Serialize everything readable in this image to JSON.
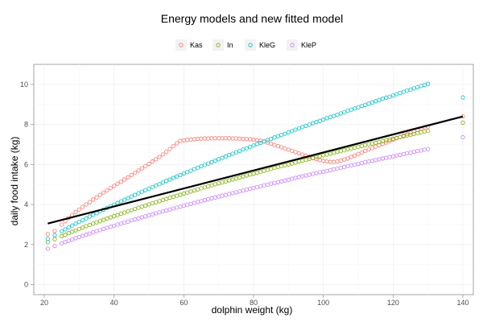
{
  "chart_data": {
    "type": "scatter",
    "title": "Energy models and new fitted model",
    "xlabel": "dolphin weight (kg)",
    "ylabel": "daily food intake (kg)",
    "xlim": [
      17,
      143
    ],
    "ylim": [
      -0.5,
      11
    ],
    "xticks": [
      "20",
      "40",
      "60",
      "80",
      "100",
      "120",
      "140"
    ],
    "yticks": [
      "0",
      "2",
      "4",
      "6",
      "8",
      "10"
    ],
    "grid": true,
    "legend_position": "top",
    "x": [
      21,
      23,
      25,
      26,
      27,
      28,
      29,
      30,
      31,
      32,
      33,
      34,
      35,
      36,
      37,
      38,
      39,
      40,
      41,
      42,
      43,
      44,
      45,
      46,
      47,
      48,
      49,
      50,
      51,
      52,
      53,
      54,
      55,
      56,
      57,
      58,
      59,
      60,
      61,
      62,
      63,
      64,
      65,
      66,
      67,
      68,
      69,
      70,
      71,
      72,
      73,
      74,
      75,
      76,
      77,
      78,
      79,
      80,
      81,
      82,
      83,
      84,
      85,
      86,
      87,
      88,
      89,
      90,
      91,
      92,
      93,
      94,
      95,
      96,
      97,
      98,
      99,
      100,
      101,
      102,
      103,
      104,
      105,
      106,
      107,
      108,
      109,
      110,
      111,
      112,
      113,
      114,
      115,
      116,
      117,
      118,
      119,
      120,
      121,
      122,
      123,
      124,
      125,
      126,
      127,
      128,
      129,
      130,
      140
    ],
    "series": [
      {
        "name": "Kas",
        "color": "#F8766D",
        "values": [
          2.52,
          2.68,
          3.0,
          3.17,
          3.33,
          3.47,
          3.62,
          3.75,
          3.88,
          4.0,
          4.12,
          4.25,
          4.36,
          4.48,
          4.6,
          4.71,
          4.82,
          4.93,
          5.04,
          5.14,
          5.25,
          5.36,
          5.48,
          5.59,
          5.7,
          5.81,
          5.92,
          6.03,
          6.15,
          6.26,
          6.38,
          6.5,
          6.64,
          6.78,
          6.92,
          7.06,
          7.18,
          7.21,
          7.23,
          7.25,
          7.26,
          7.28,
          7.29,
          7.3,
          7.3,
          7.31,
          7.31,
          7.31,
          7.31,
          7.31,
          7.31,
          7.3,
          7.3,
          7.29,
          7.28,
          7.27,
          7.26,
          7.24,
          7.22,
          7.19,
          7.15,
          7.1,
          7.04,
          6.98,
          6.92,
          6.86,
          6.8,
          6.74,
          6.68,
          6.62,
          6.56,
          6.5,
          6.44,
          6.38,
          6.33,
          6.27,
          6.22,
          6.18,
          6.15,
          6.13,
          6.13,
          6.15,
          6.2,
          6.25,
          6.3,
          6.38,
          6.45,
          6.53,
          6.6,
          6.68,
          6.75,
          6.82,
          6.89,
          6.96,
          7.03,
          7.1,
          7.17,
          7.24,
          7.31,
          7.38,
          7.45,
          7.52,
          7.59,
          7.66,
          7.73,
          7.8,
          7.87,
          7.9,
          8.4
        ]
      },
      {
        "name": "In",
        "color": "#7CAE00",
        "values": [
          2.12,
          2.27,
          2.42,
          2.49,
          2.57,
          2.64,
          2.71,
          2.78,
          2.85,
          2.92,
          2.98,
          3.05,
          3.11,
          3.17,
          3.24,
          3.3,
          3.36,
          3.42,
          3.48,
          3.54,
          3.6,
          3.66,
          3.72,
          3.78,
          3.84,
          3.89,
          3.95,
          4.01,
          4.06,
          4.12,
          4.17,
          4.23,
          4.28,
          4.34,
          4.39,
          4.44,
          4.49,
          4.55,
          4.6,
          4.65,
          4.7,
          4.75,
          4.81,
          4.86,
          4.91,
          4.96,
          5.01,
          5.06,
          5.11,
          5.16,
          5.21,
          5.25,
          5.3,
          5.35,
          5.4,
          5.45,
          5.5,
          5.54,
          5.59,
          5.64,
          5.69,
          5.73,
          5.78,
          5.83,
          5.87,
          5.92,
          5.96,
          6.01,
          6.05,
          6.1,
          6.15,
          6.19,
          6.23,
          6.28,
          6.32,
          6.37,
          6.41,
          6.46,
          6.5,
          6.54,
          6.59,
          6.63,
          6.67,
          6.71,
          6.76,
          6.8,
          6.84,
          6.88,
          6.92,
          6.97,
          7.01,
          7.05,
          7.09,
          7.13,
          7.17,
          7.21,
          7.25,
          7.29,
          7.33,
          7.37,
          7.41,
          7.45,
          7.49,
          7.53,
          7.57,
          7.61,
          7.65,
          7.69,
          8.09
        ]
      },
      {
        "name": "KleG",
        "color": "#00BFC4",
        "values": [
          2.28,
          2.47,
          2.67,
          2.76,
          2.86,
          2.95,
          3.04,
          3.13,
          3.22,
          3.31,
          3.4,
          3.49,
          3.57,
          3.66,
          3.74,
          3.83,
          3.91,
          3.99,
          4.08,
          4.16,
          4.24,
          4.32,
          4.4,
          4.48,
          4.56,
          4.64,
          4.72,
          4.79,
          4.87,
          4.95,
          5.02,
          5.1,
          5.18,
          5.25,
          5.33,
          5.4,
          5.47,
          5.55,
          5.62,
          5.69,
          5.77,
          5.84,
          5.91,
          5.98,
          6.05,
          6.12,
          6.19,
          6.26,
          6.33,
          6.4,
          6.47,
          6.54,
          6.61,
          6.68,
          6.75,
          6.81,
          6.88,
          6.95,
          7.02,
          7.08,
          7.15,
          7.22,
          7.28,
          7.35,
          7.41,
          7.48,
          7.54,
          7.61,
          7.67,
          7.74,
          7.8,
          7.87,
          7.93,
          7.99,
          8.06,
          8.12,
          8.18,
          8.24,
          8.31,
          8.37,
          8.43,
          8.49,
          8.55,
          8.61,
          8.68,
          8.74,
          8.8,
          8.86,
          8.92,
          8.98,
          9.04,
          9.1,
          9.16,
          9.22,
          9.28,
          9.34,
          9.39,
          9.45,
          9.51,
          9.57,
          9.63,
          9.69,
          9.74,
          9.8,
          9.86,
          9.92,
          9.97,
          10.03,
          9.35
        ]
      },
      {
        "name": "KleP",
        "color": "#C77CFF",
        "values": [
          1.8,
          1.93,
          2.06,
          2.13,
          2.19,
          2.25,
          2.32,
          2.38,
          2.44,
          2.5,
          2.55,
          2.61,
          2.67,
          2.72,
          2.78,
          2.84,
          2.89,
          2.94,
          3.0,
          3.05,
          3.1,
          3.15,
          3.21,
          3.26,
          3.31,
          3.36,
          3.41,
          3.46,
          3.51,
          3.56,
          3.61,
          3.66,
          3.7,
          3.75,
          3.8,
          3.85,
          3.89,
          3.94,
          3.99,
          4.03,
          4.08,
          4.13,
          4.17,
          4.22,
          4.26,
          4.31,
          4.35,
          4.4,
          4.44,
          4.48,
          4.53,
          4.57,
          4.61,
          4.66,
          4.7,
          4.74,
          4.79,
          4.83,
          4.87,
          4.91,
          4.96,
          5.0,
          5.04,
          5.08,
          5.12,
          5.16,
          5.2,
          5.24,
          5.29,
          5.33,
          5.37,
          5.41,
          5.45,
          5.49,
          5.53,
          5.57,
          5.61,
          5.64,
          5.68,
          5.72,
          5.76,
          5.8,
          5.84,
          5.88,
          5.92,
          5.96,
          5.99,
          6.03,
          6.07,
          6.11,
          6.15,
          6.18,
          6.22,
          6.26,
          6.3,
          6.33,
          6.37,
          6.41,
          6.45,
          6.48,
          6.52,
          6.56,
          6.59,
          6.63,
          6.67,
          6.7,
          6.74,
          6.77,
          7.36
        ]
      }
    ],
    "fitted_line": {
      "color": "#000000",
      "x": [
        21,
        140
      ],
      "y": [
        3.05,
        8.4
      ]
    }
  }
}
